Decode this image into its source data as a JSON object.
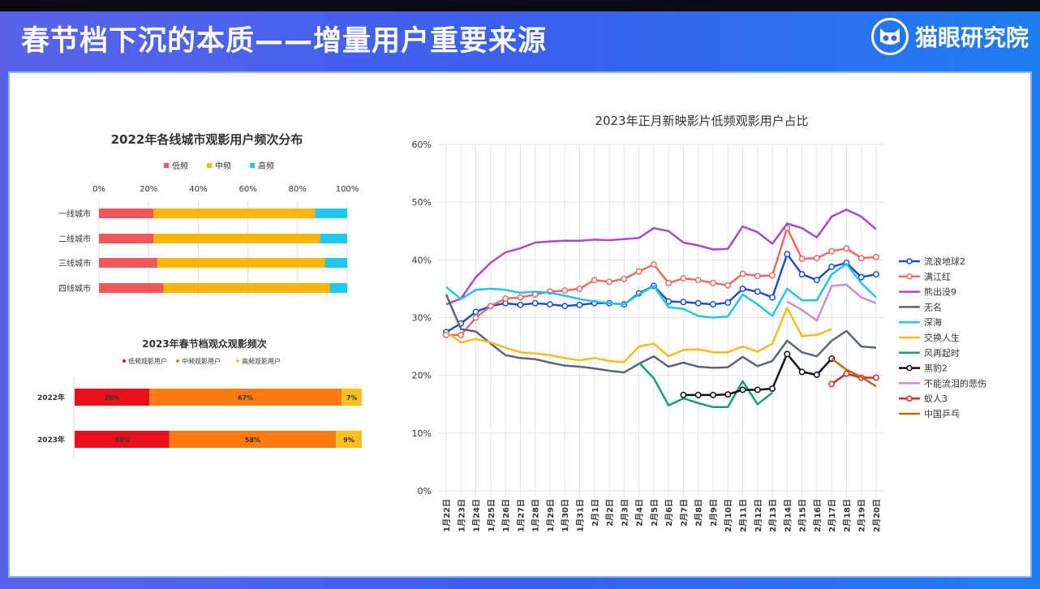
{
  "header": {
    "title": "春节档下沉的本质——增量用户重要来源",
    "brand": "猫眼研究院"
  },
  "chart_data": [
    {
      "type": "bar",
      "orientation": "horizontal-stacked",
      "title": "2022年各线城市观影用户频次分布",
      "categories": [
        "一线城市",
        "二线城市",
        "三线城市",
        "四线城市"
      ],
      "xticks": [
        "0%",
        "20%",
        "40%",
        "60%",
        "80%",
        "100%"
      ],
      "xlim": [
        0,
        100
      ],
      "legend_position": "top",
      "series": [
        {
          "name": "低频",
          "color": "#f0565a",
          "values": [
            22,
            22,
            23.5,
            26
          ]
        },
        {
          "name": "中频",
          "color": "#fbb50b",
          "values": [
            65,
            67,
            67.5,
            67
          ]
        },
        {
          "name": "高频",
          "color": "#1ec8ef",
          "values": [
            13,
            11,
            9,
            7
          ]
        }
      ]
    },
    {
      "type": "bar",
      "orientation": "horizontal-stacked",
      "title": "2023年春节档观众观影频次",
      "categories": [
        "2022年",
        "2023年"
      ],
      "xlim": [
        0,
        100
      ],
      "legend_position": "top",
      "series": [
        {
          "name": "低频观影用户",
          "color": "#e8101a",
          "values": [
            26,
            33
          ],
          "labels": [
            "26%",
            "33%"
          ]
        },
        {
          "name": "中频观影用户",
          "color": "#fb7a12",
          "values": [
            67,
            58
          ],
          "labels": [
            "67%",
            "58%"
          ]
        },
        {
          "name": "高频观影用户",
          "color": "#fbc020",
          "values": [
            7,
            9
          ],
          "labels": [
            "7%",
            "9%"
          ]
        }
      ]
    },
    {
      "type": "line",
      "title": "2023年正月新映影片低频观影用户占比",
      "x": [
        "1月22日",
        "1月23日",
        "1月24日",
        "1月25日",
        "1月26日",
        "1月27日",
        "1月28日",
        "1月29日",
        "1月30日",
        "1月31日",
        "2月1日",
        "2月2日",
        "2月3日",
        "2月4日",
        "2月5日",
        "2月6日",
        "2月7日",
        "2月8日",
        "2月9日",
        "2月10日",
        "2月11日",
        "2月12日",
        "2月13日",
        "2月14日",
        "2月15日",
        "2月16日",
        "2月17日",
        "2月18日",
        "2月19日",
        "2月20日"
      ],
      "yticks": [
        "0%",
        "10%",
        "20%",
        "30%",
        "40%",
        "50%",
        "60%"
      ],
      "ylim": [
        0,
        60
      ],
      "grid": true,
      "legend_position": "right",
      "series": [
        {
          "name": "流浪地球2",
          "color": "#1f4fc8",
          "markers": true,
          "values": [
            27.5,
            29,
            31,
            32,
            32.5,
            32.2,
            32.5,
            32.3,
            32,
            32.2,
            32.5,
            32.5,
            32.3,
            34.2,
            35.5,
            32.8,
            32.7,
            32.5,
            32.3,
            32.6,
            35,
            34.5,
            33.5,
            41,
            37.5,
            36.5,
            38.8,
            39.5,
            37,
            37.5
          ]
        },
        {
          "name": "满江红",
          "color": "#ec6a64",
          "markers": true,
          "values": [
            27,
            27,
            30,
            32,
            33.3,
            33.5,
            34,
            34.5,
            34.7,
            35,
            36.5,
            36.2,
            36.7,
            38,
            39.2,
            36,
            36.8,
            36.5,
            36,
            35.6,
            37.6,
            37.2,
            37.3,
            45.5,
            40.2,
            40.3,
            41.5,
            42,
            40.3,
            40.5
          ]
        },
        {
          "name": "熊出没9",
          "color": "#a64ad6",
          "markers": false,
          "values": [
            32.3,
            33.3,
            37,
            39.5,
            41.3,
            42,
            43,
            43.2,
            43.3,
            43.3,
            43.5,
            43.4,
            43.6,
            43.8,
            45.5,
            45,
            43,
            42.5,
            41.8,
            41.9,
            45.8,
            44.8,
            42.8,
            46.3,
            45.5,
            43.9,
            47.5,
            48.7,
            47.5,
            45.3
          ]
        },
        {
          "name": "无名",
          "color": "#5b6678",
          "markers": false,
          "values": [
            34,
            28,
            27.6,
            25.5,
            23.5,
            23,
            22.8,
            22.2,
            21.7,
            21.5,
            21.2,
            20.8,
            20.5,
            22,
            23.3,
            21.5,
            22.2,
            21.5,
            21.3,
            21.4,
            23.2,
            21.6,
            22.5,
            26,
            24,
            23.3,
            26,
            27.7,
            25,
            24.8
          ]
        },
        {
          "name": "深海",
          "color": "#22c4ee",
          "markers": false,
          "values": [
            35.3,
            33.2,
            34.8,
            35,
            34.8,
            34.3,
            34.5,
            34.3,
            33.8,
            33.2,
            32.8,
            32.5,
            32.3,
            34,
            35.5,
            31.8,
            31.5,
            30.3,
            30,
            30.2,
            34,
            32.3,
            30.3,
            35,
            33,
            33,
            37.5,
            39.3,
            36,
            33.5
          ]
        },
        {
          "name": "交换人生",
          "color": "#f8bb1c",
          "markers": false,
          "values": [
            27.5,
            25.7,
            26.3,
            25.7,
            24.8,
            24,
            23.8,
            23.5,
            23,
            22.6,
            23,
            22.5,
            22.3,
            25,
            25.5,
            23.3,
            24.4,
            24.5,
            24,
            24,
            25,
            24.1,
            25.5,
            31.7,
            26.8,
            27,
            28,
            null,
            null,
            null
          ]
        },
        {
          "name": "风再起时",
          "color": "#14a06a",
          "markers": false,
          "values": [
            null,
            null,
            null,
            null,
            null,
            null,
            null,
            null,
            null,
            null,
            null,
            null,
            null,
            22.2,
            19.5,
            14.8,
            16,
            15.2,
            14.5,
            14.5,
            19,
            15,
            17,
            null,
            null,
            null,
            null,
            null,
            null,
            null
          ]
        },
        {
          "name": "黑豹2",
          "color": "#111111",
          "markers": true,
          "values": [
            null,
            null,
            null,
            null,
            null,
            null,
            null,
            null,
            null,
            null,
            null,
            null,
            null,
            null,
            null,
            null,
            16.6,
            16.6,
            16.6,
            16.7,
            17.5,
            17.5,
            17.7,
            23.7,
            20.6,
            20.1,
            22.9,
            null,
            null,
            null
          ]
        },
        {
          "name": "不能流泪的悲伤",
          "color": "#c98ae6",
          "markers": false,
          "values": [
            null,
            null,
            null,
            null,
            null,
            null,
            null,
            null,
            null,
            null,
            null,
            null,
            null,
            null,
            null,
            null,
            null,
            null,
            null,
            null,
            null,
            null,
            null,
            32.8,
            31.3,
            29.5,
            35.5,
            35.7,
            33.5,
            32.5
          ]
        },
        {
          "name": "蚁人3",
          "color": "#d42a2a",
          "markers": true,
          "values": [
            null,
            null,
            null,
            null,
            null,
            null,
            null,
            null,
            null,
            null,
            null,
            null,
            null,
            null,
            null,
            null,
            null,
            null,
            null,
            null,
            null,
            null,
            null,
            null,
            null,
            null,
            18.5,
            20.3,
            19.6,
            19.6
          ]
        },
        {
          "name": "中国乒乓",
          "color": "#b86f10",
          "markers": false,
          "values": [
            null,
            null,
            null,
            null,
            null,
            null,
            null,
            null,
            null,
            null,
            null,
            null,
            null,
            null,
            null,
            null,
            null,
            null,
            null,
            null,
            null,
            null,
            null,
            null,
            null,
            null,
            22.9,
            21,
            19.7,
            18.1
          ]
        }
      ]
    }
  ]
}
